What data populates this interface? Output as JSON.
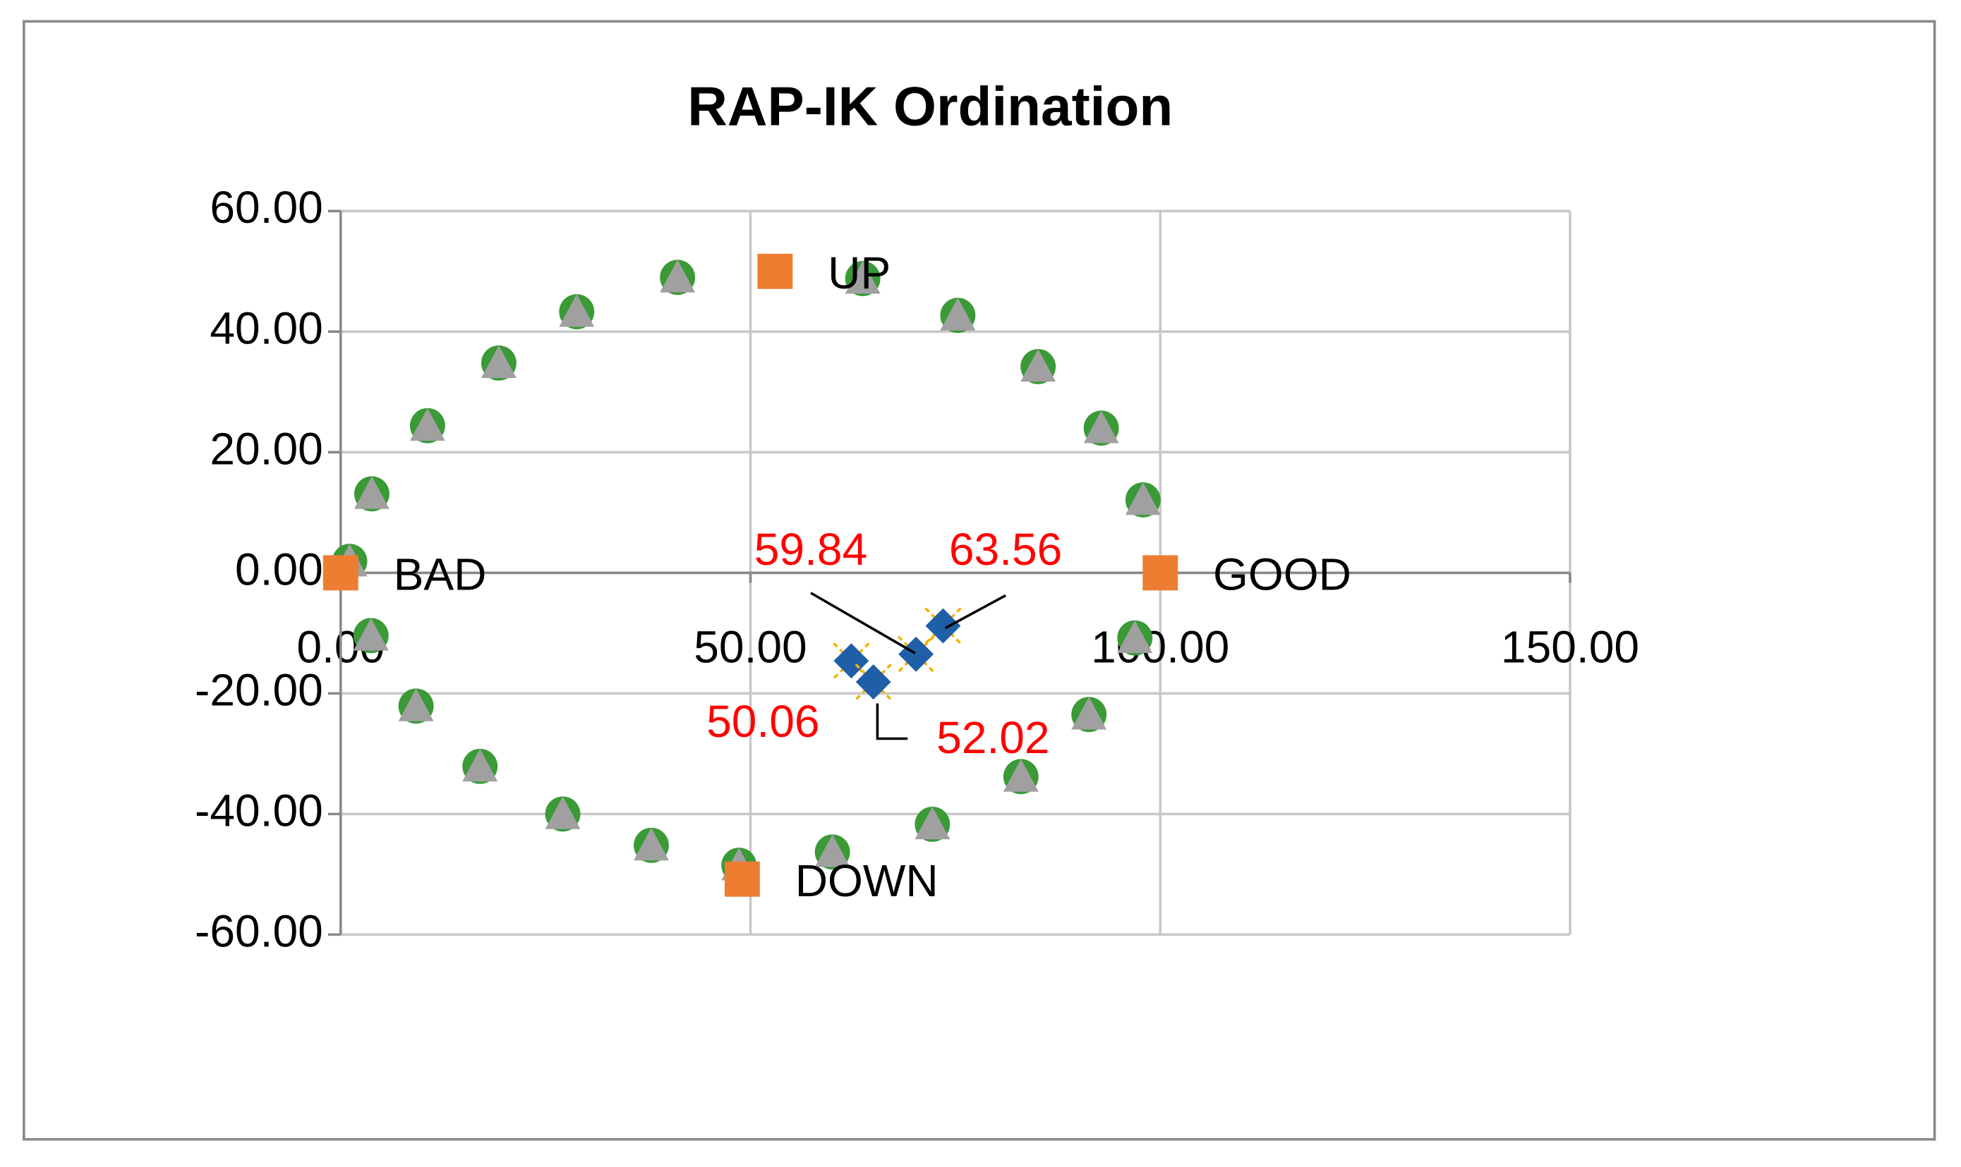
{
  "chart_data": {
    "type": "scatter",
    "title": "RAP-IK Ordination",
    "xlim": [
      0,
      150
    ],
    "ylim": [
      -60,
      60
    ],
    "xticks": [
      {
        "value": 0,
        "label": "0.00"
      },
      {
        "value": 50,
        "label": "50.00"
      },
      {
        "value": 100,
        "label": "100.00"
      },
      {
        "value": 150,
        "label": "150.00"
      }
    ],
    "yticks": [
      {
        "value": -60,
        "label": "-60.00"
      },
      {
        "value": -40,
        "label": "-40.00"
      },
      {
        "value": -20,
        "label": "-20.00"
      },
      {
        "value": 0,
        "label": "0.00"
      },
      {
        "value": 20,
        "label": "20.00"
      },
      {
        "value": 40,
        "label": "40.00"
      },
      {
        "value": 60,
        "label": "60.00"
      }
    ],
    "grid": true,
    "series": [
      {
        "marker": "circle",
        "color": "#3a9a36",
        "x": [
          1.1,
          3.8,
          10.6,
          19.3,
          28.8,
          41.1,
          63.7,
          75.3,
          85.1,
          92.8,
          97.9,
          96.9,
          91.3,
          83,
          72.2,
          60,
          48.6,
          37.9,
          27.1,
          17,
          9.2,
          3.7
        ],
        "y": [
          1.9,
          13.1,
          24.4,
          34.8,
          43.3,
          49,
          48.8,
          42.7,
          34.2,
          24,
          12.1,
          -10.8,
          -23.5,
          -33.8,
          -41.7,
          -46.3,
          -48.5,
          -45.2,
          -40,
          -32.1,
          -22.1,
          -10.4
        ]
      },
      {
        "marker": "triangle",
        "color": "#a0a0a0",
        "x": [
          1.1,
          3.8,
          10.6,
          19.3,
          28.8,
          41.1,
          63.7,
          75.3,
          85.1,
          92.8,
          97.9,
          96.9,
          91.3,
          83,
          72.2,
          60,
          48.6,
          37.9,
          27.1,
          17,
          9.2,
          3.7
        ],
        "y": [
          1.9,
          13.1,
          24.4,
          34.8,
          43.3,
          49,
          48.8,
          42.7,
          34.2,
          24,
          12.1,
          -10.8,
          -23.5,
          -33.8,
          -41.7,
          -46.3,
          -48.5,
          -45.2,
          -40,
          -32.1,
          -22.1,
          -10.4
        ]
      },
      {
        "marker": "square",
        "color": "#ed7d31",
        "x": [
          0,
          100,
          53,
          49
        ],
        "y": [
          0,
          0,
          50,
          -50.8
        ],
        "point_labels": [
          "BAD",
          "GOOD",
          "UP",
          "DOWN"
        ]
      },
      {
        "marker": "diamond",
        "color": "#1f5fa8",
        "x": [
          62.3,
          65,
          70.2,
          73.5
        ],
        "y": [
          -14.6,
          -18.1,
          -13.5,
          -8.8
        ],
        "point_labels": [
          "50.06",
          "52.02",
          "59.84",
          "63.56"
        ]
      }
    ]
  }
}
